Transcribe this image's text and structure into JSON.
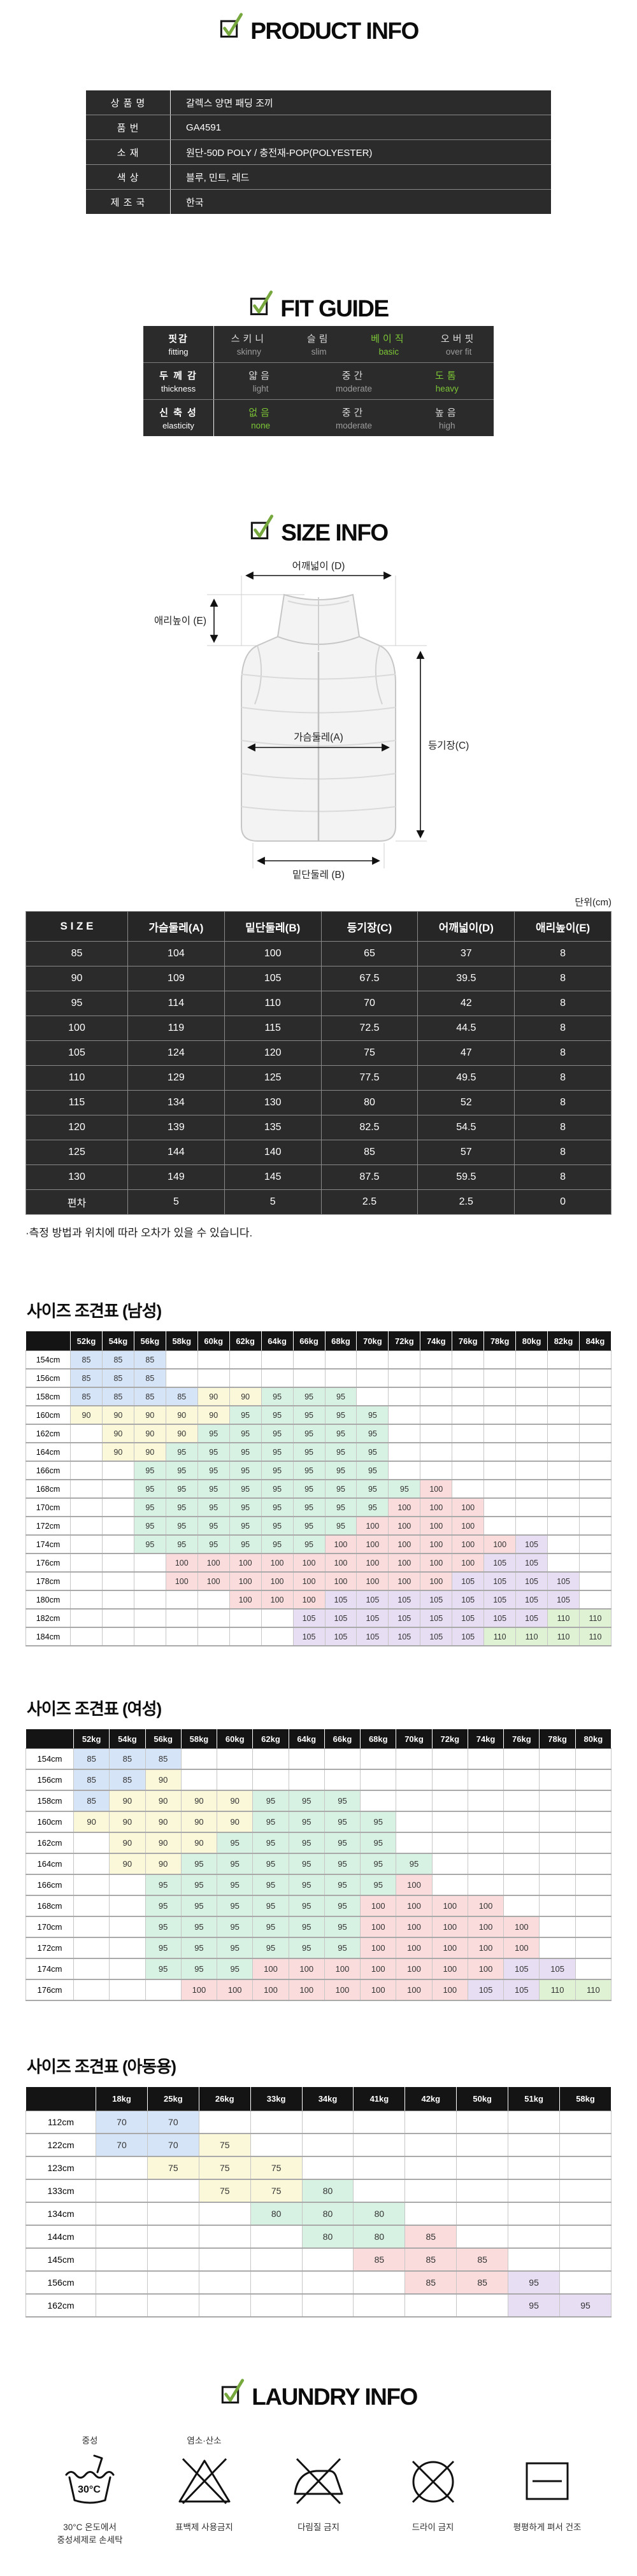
{
  "colors": {
    "accent_green": "#7cc636",
    "check_green": "#76a83e",
    "table_dark_bg": "#2b2b2b",
    "chart_header_bg": "#141414",
    "size_cell_colors": {
      "blue": "#d6e4f7",
      "yellow": "#fbf8d9",
      "green": "#d7f1e3",
      "pink": "#fadcdc",
      "purple": "#e7def4",
      "lime": "#dff3d4"
    }
  },
  "product_info": {
    "title": "PRODUCT INFO",
    "rows": [
      {
        "label": "상 품 명",
        "value": "갈렉스 양면 패딩 조끼"
      },
      {
        "label": "품   번",
        "value": "GA4591"
      },
      {
        "label": "소   재",
        "value": "원단-50D POLY / 충전재-POP(POLYESTER)"
      },
      {
        "label": "색   상",
        "value": "블루, 민트, 레드"
      },
      {
        "label": "제 조 국",
        "value": "한국"
      }
    ]
  },
  "fit_guide": {
    "title": "FIT GUIDE",
    "rows": [
      {
        "label_ko": "핏감",
        "label_en": "fitting",
        "options": [
          {
            "ko": "스키니",
            "en": "skinny",
            "active": false
          },
          {
            "ko": "슬림",
            "en": "slim",
            "active": false
          },
          {
            "ko": "베이직",
            "en": "basic",
            "active": true
          },
          {
            "ko": "오버핏",
            "en": "over fit",
            "active": false
          }
        ]
      },
      {
        "label_ko": "두 께 감",
        "label_en": "thickness",
        "options": [
          {
            "ko": "얇음",
            "en": "light",
            "active": false
          },
          {
            "ko": "중간",
            "en": "moderate",
            "active": false
          },
          {
            "ko": "도톰",
            "en": "heavy",
            "active": true
          }
        ]
      },
      {
        "label_ko": "신 축 성",
        "label_en": "elasticity",
        "options": [
          {
            "ko": "없음",
            "en": "none",
            "active": true
          },
          {
            "ko": "중간",
            "en": "moderate",
            "active": false
          },
          {
            "ko": "높음",
            "en": "high",
            "active": false
          }
        ]
      }
    ]
  },
  "size_info": {
    "title": "SIZE INFO",
    "diagram_labels": {
      "shoulder": "어깨넓이 (D)",
      "collar": "애리높이 (E)",
      "chest": "가슴둘레(A)",
      "back": "등기장(C)",
      "hem": "밑단둘레 (B)"
    },
    "unit": "단위(cm)",
    "table": {
      "header": [
        "S I Z E",
        "가슴둘레(A)",
        "밑단둘레(B)",
        "등기장(C)",
        "어깨넓이(D)",
        "애리높이(E)"
      ],
      "rows": [
        [
          "85",
          "104",
          "100",
          "65",
          "37",
          "8"
        ],
        [
          "90",
          "109",
          "105",
          "67.5",
          "39.5",
          "8"
        ],
        [
          "95",
          "114",
          "110",
          "70",
          "42",
          "8"
        ],
        [
          "100",
          "119",
          "115",
          "72.5",
          "44.5",
          "8"
        ],
        [
          "105",
          "124",
          "120",
          "75",
          "47",
          "8"
        ],
        [
          "110",
          "129",
          "125",
          "77.5",
          "49.5",
          "8"
        ],
        [
          "115",
          "134",
          "130",
          "80",
          "52",
          "8"
        ],
        [
          "120",
          "139",
          "135",
          "82.5",
          "54.5",
          "8"
        ],
        [
          "125",
          "144",
          "140",
          "85",
          "57",
          "8"
        ],
        [
          "130",
          "149",
          "145",
          "87.5",
          "59.5",
          "8"
        ],
        [
          "편차",
          "5",
          "5",
          "2.5",
          "2.5",
          "0"
        ]
      ]
    },
    "footnote": "·측정 방법과 위치에 따라 오차가 있을 수 있습니다."
  },
  "size_charts": [
    {
      "title": "사이즈 조견표 (남성)",
      "weights": [
        "52kg",
        "54kg",
        "56kg",
        "58kg",
        "60kg",
        "62kg",
        "64kg",
        "66kg",
        "68kg",
        "70kg",
        "72kg",
        "74kg",
        "76kg",
        "78kg",
        "80kg",
        "82kg",
        "84kg"
      ],
      "heights": [
        "154cm",
        "156cm",
        "158cm",
        "160cm",
        "162cm",
        "164cm",
        "166cm",
        "168cm",
        "170cm",
        "172cm",
        "174cm",
        "176cm",
        "178cm",
        "180cm",
        "182cm",
        "184cm"
      ],
      "cells": [
        [
          "85",
          "85",
          "85",
          "",
          "",
          "",
          "",
          "",
          "",
          "",
          "",
          "",
          "",
          "",
          "",
          "",
          ""
        ],
        [
          "85",
          "85",
          "85",
          "",
          "",
          "",
          "",
          "",
          "",
          "",
          "",
          "",
          "",
          "",
          "",
          "",
          ""
        ],
        [
          "85",
          "85",
          "85",
          "85",
          "90",
          "90",
          "95",
          "95",
          "95",
          "",
          "",
          "",
          "",
          "",
          "",
          "",
          ""
        ],
        [
          "90",
          "90",
          "90",
          "90",
          "90",
          "95",
          "95",
          "95",
          "95",
          "95",
          "",
          "",
          "",
          "",
          "",
          "",
          ""
        ],
        [
          "",
          "90",
          "90",
          "90",
          "95",
          "95",
          "95",
          "95",
          "95",
          "95",
          "",
          "",
          "",
          "",
          "",
          "",
          ""
        ],
        [
          "",
          "90",
          "90",
          "95",
          "95",
          "95",
          "95",
          "95",
          "95",
          "95",
          "",
          "",
          "",
          "",
          "",
          "",
          ""
        ],
        [
          "",
          "",
          "95",
          "95",
          "95",
          "95",
          "95",
          "95",
          "95",
          "95",
          "",
          "",
          "",
          "",
          "",
          "",
          ""
        ],
        [
          "",
          "",
          "95",
          "95",
          "95",
          "95",
          "95",
          "95",
          "95",
          "95",
          "95",
          "100",
          "",
          "",
          "",
          "",
          ""
        ],
        [
          "",
          "",
          "95",
          "95",
          "95",
          "95",
          "95",
          "95",
          "95",
          "95",
          "100",
          "100",
          "100",
          "",
          "",
          "",
          ""
        ],
        [
          "",
          "",
          "95",
          "95",
          "95",
          "95",
          "95",
          "95",
          "95",
          "100",
          "100",
          "100",
          "100",
          "",
          "",
          "",
          ""
        ],
        [
          "",
          "",
          "95",
          "95",
          "95",
          "95",
          "95",
          "95",
          "100",
          "100",
          "100",
          "100",
          "100",
          "100",
          "105",
          "",
          ""
        ],
        [
          "",
          "",
          "",
          "100",
          "100",
          "100",
          "100",
          "100",
          "100",
          "100",
          "100",
          "100",
          "100",
          "105",
          "105",
          "",
          ""
        ],
        [
          "",
          "",
          "",
          "100",
          "100",
          "100",
          "100",
          "100",
          "100",
          "100",
          "100",
          "100",
          "105",
          "105",
          "105",
          "105",
          ""
        ],
        [
          "",
          "",
          "",
          "",
          "",
          "100",
          "100",
          "100",
          "105",
          "105",
          "105",
          "105",
          "105",
          "105",
          "105",
          "105",
          ""
        ],
        [
          "",
          "",
          "",
          "",
          "",
          "",
          "",
          "105",
          "105",
          "105",
          "105",
          "105",
          "105",
          "105",
          "105",
          "110",
          "110"
        ],
        [
          "",
          "",
          "",
          "",
          "",
          "",
          "",
          "105",
          "105",
          "105",
          "105",
          "105",
          "105",
          "110",
          "110",
          "110",
          "110"
        ]
      ],
      "color_map": {
        "85": "blue",
        "90": "yellow",
        "95": "green",
        "100": "pink",
        "105": "purple",
        "110": "lime"
      }
    },
    {
      "title": "사이즈 조견표 (여성)",
      "weights": [
        "52kg",
        "54kg",
        "56kg",
        "58kg",
        "60kg",
        "62kg",
        "64kg",
        "66kg",
        "68kg",
        "70kg",
        "72kg",
        "74kg",
        "76kg",
        "78kg",
        "80kg"
      ],
      "heights": [
        "154cm",
        "156cm",
        "158cm",
        "160cm",
        "162cm",
        "164cm",
        "166cm",
        "168cm",
        "170cm",
        "172cm",
        "174cm",
        "176cm"
      ],
      "cells": [
        [
          "85",
          "85",
          "85",
          "",
          "",
          "",
          "",
          "",
          "",
          "",
          "",
          "",
          "",
          "",
          ""
        ],
        [
          "85",
          "85",
          "90",
          "",
          "",
          "",
          "",
          "",
          "",
          "",
          "",
          "",
          "",
          "",
          ""
        ],
        [
          "85",
          "90",
          "90",
          "90",
          "90",
          "95",
          "95",
          "95",
          "",
          "",
          "",
          "",
          "",
          "",
          ""
        ],
        [
          "90",
          "90",
          "90",
          "90",
          "90",
          "95",
          "95",
          "95",
          "95",
          "",
          "",
          "",
          "",
          "",
          ""
        ],
        [
          "",
          "90",
          "90",
          "90",
          "95",
          "95",
          "95",
          "95",
          "95",
          "",
          "",
          "",
          "",
          "",
          ""
        ],
        [
          "",
          "90",
          "90",
          "95",
          "95",
          "95",
          "95",
          "95",
          "95",
          "95",
          "",
          "",
          "",
          "",
          ""
        ],
        [
          "",
          "",
          "95",
          "95",
          "95",
          "95",
          "95",
          "95",
          "95",
          "100",
          "",
          "",
          "",
          "",
          ""
        ],
        [
          "",
          "",
          "95",
          "95",
          "95",
          "95",
          "95",
          "95",
          "100",
          "100",
          "100",
          "100",
          "",
          "",
          ""
        ],
        [
          "",
          "",
          "95",
          "95",
          "95",
          "95",
          "95",
          "95",
          "100",
          "100",
          "100",
          "100",
          "100",
          "",
          ""
        ],
        [
          "",
          "",
          "95",
          "95",
          "95",
          "95",
          "95",
          "95",
          "100",
          "100",
          "100",
          "100",
          "100",
          "",
          ""
        ],
        [
          "",
          "",
          "95",
          "95",
          "95",
          "100",
          "100",
          "100",
          "100",
          "100",
          "100",
          "100",
          "105",
          "105",
          ""
        ],
        [
          "",
          "",
          "",
          "100",
          "100",
          "100",
          "100",
          "100",
          "100",
          "100",
          "100",
          "105",
          "105",
          "110",
          "110"
        ]
      ],
      "color_map": {
        "85": "blue",
        "90": "yellow",
        "95": "green",
        "100": "pink",
        "105": "purple",
        "110": "lime"
      }
    },
    {
      "title": "사이즈 조견표 (아동용)",
      "weights": [
        "18kg",
        "25kg",
        "26kg",
        "33kg",
        "34kg",
        "41kg",
        "42kg",
        "50kg",
        "51kg",
        "58kg"
      ],
      "heights": [
        "112cm",
        "122cm",
        "123cm",
        "133cm",
        "134cm",
        "144cm",
        "145cm",
        "156cm",
        "162cm"
      ],
      "cells": [
        [
          "70",
          "70",
          "",
          "",
          "",
          "",
          "",
          "",
          "",
          ""
        ],
        [
          "70",
          "70",
          "75",
          "",
          "",
          "",
          "",
          "",
          "",
          ""
        ],
        [
          "",
          "75",
          "75",
          "75",
          "",
          "",
          "",
          "",
          "",
          ""
        ],
        [
          "",
          "",
          "75",
          "75",
          "80",
          "",
          "",
          "",
          "",
          ""
        ],
        [
          "",
          "",
          "",
          "80",
          "80",
          "80",
          "",
          "",
          "",
          ""
        ],
        [
          "",
          "",
          "",
          "",
          "80",
          "80",
          "85",
          "",
          "",
          ""
        ],
        [
          "",
          "",
          "",
          "",
          "",
          "85",
          "85",
          "85",
          "",
          ""
        ],
        [
          "",
          "",
          "",
          "",
          "",
          "",
          "85",
          "85",
          "95",
          ""
        ],
        [
          "",
          "",
          "",
          "",
          "",
          "",
          "",
          "",
          "95",
          "95"
        ]
      ],
      "color_map": {
        "70": "blue",
        "75": "yellow",
        "80": "green",
        "85": "pink",
        "95": "purple"
      }
    }
  ],
  "laundry": {
    "title": "LAUNDRY INFO",
    "items": [
      {
        "top_label": "중성",
        "icon": "handwash-30c-icon",
        "icon_text": "30°C",
        "caption_lines": [
          "30°C 온도에서",
          "중성세제로 손세탁"
        ]
      },
      {
        "top_label": "염소·산소",
        "icon": "no-bleach-icon",
        "caption_lines": [
          "표백제 사용금지"
        ]
      },
      {
        "top_label": "",
        "icon": "no-iron-icon",
        "caption_lines": [
          "다림질 금지"
        ]
      },
      {
        "top_label": "",
        "icon": "no-dryclean-icon",
        "caption_lines": [
          "드라이 금지"
        ]
      },
      {
        "top_label": "",
        "icon": "flat-dry-icon",
        "caption_lines": [
          "평평하게 펴서 건조"
        ]
      }
    ]
  }
}
